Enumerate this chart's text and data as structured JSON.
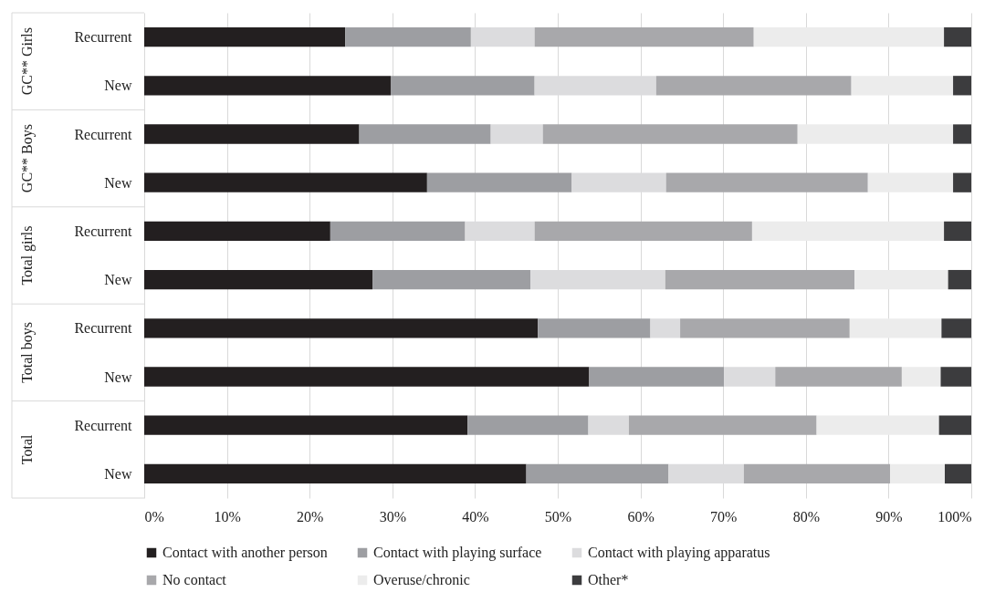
{
  "chart_data": {
    "type": "bar",
    "orientation": "horizontal",
    "stacked": true,
    "categories": [
      "Recurrent",
      "New",
      "Recurrent",
      "New",
      "Recurrent",
      "New",
      "Recurrent",
      "New",
      "Recurrent",
      "New"
    ],
    "annotations": [
      "GC** Girls",
      "GC** Boys",
      "Total girls",
      "Total boys",
      "Total"
    ],
    "series": [
      {
        "name": "Contact with another person",
        "color": "#231f20",
        "values": [
          24.3,
          29.8,
          26.0,
          34.2,
          22.5,
          27.6,
          47.6,
          53.8,
          39.1,
          46.2
        ]
      },
      {
        "name": "Contact with playing surface",
        "color": "#9d9ea2",
        "values": [
          15.2,
          17.4,
          15.9,
          17.5,
          16.3,
          19.1,
          13.6,
          16.3,
          14.6,
          17.2
        ]
      },
      {
        "name": "Contact with playing apparatus",
        "color": "#dcdcde",
        "values": [
          7.7,
          14.7,
          6.3,
          11.4,
          8.4,
          16.3,
          3.6,
          6.2,
          4.9,
          9.1
        ]
      },
      {
        "name": "No contact",
        "color": "#a8a8ab",
        "values": [
          26.5,
          23.6,
          30.8,
          24.4,
          26.3,
          22.9,
          20.5,
          15.3,
          22.7,
          17.7
        ]
      },
      {
        "name": "Overuse/chronic",
        "color": "#ececec",
        "values": [
          23.0,
          12.3,
          18.8,
          10.3,
          23.2,
          11.3,
          11.1,
          4.7,
          14.8,
          6.6
        ]
      },
      {
        "name": "Other*",
        "color": "#3c3c3e",
        "values": [
          3.3,
          2.2,
          2.2,
          2.2,
          3.3,
          2.8,
          3.6,
          3.7,
          3.9,
          3.2
        ]
      }
    ],
    "xlim": [
      0,
      100
    ],
    "xticks": [
      {
        "value": 0,
        "label": "0%"
      },
      {
        "value": 10,
        "label": "10%"
      },
      {
        "value": 20,
        "label": "20%"
      },
      {
        "value": 30,
        "label": "30%"
      },
      {
        "value": 40,
        "label": "40%"
      },
      {
        "value": 50,
        "label": "50%"
      },
      {
        "value": 60,
        "label": "60%"
      },
      {
        "value": 70,
        "label": "70%"
      },
      {
        "value": 80,
        "label": "80%"
      },
      {
        "value": 90,
        "label": "90%"
      },
      {
        "value": 100,
        "label": "100%"
      }
    ],
    "grid": "x",
    "legend": "bottom"
  }
}
